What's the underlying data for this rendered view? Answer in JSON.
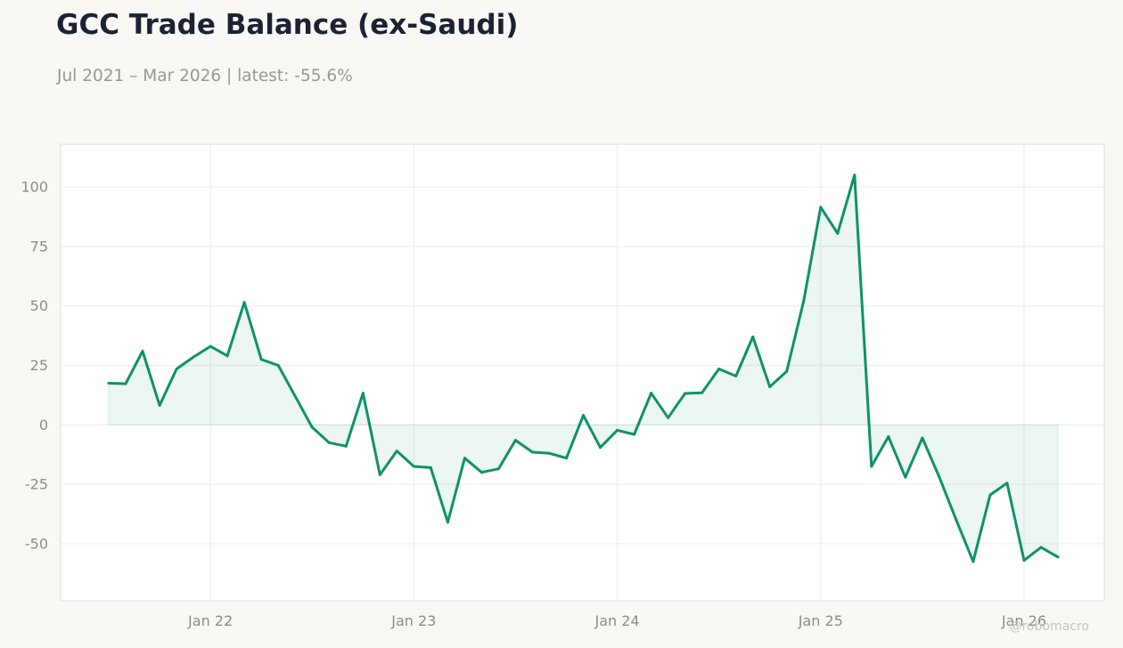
{
  "header": {
    "title": "GCC Trade Balance (ex-Saudi)",
    "subtitle": "Jul 2021 – Mar 2026 | latest: -55.6%"
  },
  "watermark": "@robomacro",
  "colors": {
    "line": "#0f9268",
    "fill": "#0f9268",
    "grid": "#ececec",
    "frame": "#dcdcd8",
    "plot_bg": "#ffffff",
    "page_bg": "#f9f8f5"
  },
  "chart_data": {
    "type": "area",
    "title": "GCC Trade Balance (ex-Saudi)",
    "subtitle": "Jul 2021 – Mar 2026 | latest: -55.6%",
    "xlabel": "",
    "ylabel": "",
    "x_start": "2021-07",
    "x_end": "2026-03",
    "x": [
      "2021-07",
      "2021-08",
      "2021-09",
      "2021-10",
      "2021-11",
      "2021-12",
      "2022-01",
      "2022-02",
      "2022-03",
      "2022-04",
      "2022-05",
      "2022-06",
      "2022-07",
      "2022-08",
      "2022-09",
      "2022-10",
      "2022-11",
      "2022-12",
      "2023-01",
      "2023-02",
      "2023-03",
      "2023-04",
      "2023-05",
      "2023-06",
      "2023-07",
      "2023-08",
      "2023-09",
      "2023-10",
      "2023-11",
      "2023-12",
      "2024-01",
      "2024-02",
      "2024-03",
      "2024-04",
      "2024-05",
      "2024-06",
      "2024-07",
      "2024-08",
      "2024-09",
      "2024-10",
      "2024-11",
      "2024-12",
      "2025-01",
      "2025-02",
      "2025-03",
      "2025-04",
      "2025-05",
      "2025-06",
      "2025-07",
      "2025-08",
      "2025-09",
      "2025-10",
      "2025-11",
      "2025-12",
      "2026-01",
      "2026-02",
      "2026-03"
    ],
    "series": [
      {
        "values": [
          17.5,
          17.3,
          31.0,
          8.2,
          23.5,
          28.5,
          33.0,
          29.0,
          51.5,
          27.5,
          25.0,
          12.0,
          -1.0,
          -7.5,
          -9.0,
          13.3,
          -21.0,
          -11.0,
          -17.5,
          -18.0,
          -41.0,
          -14.0,
          -20.0,
          -18.5,
          -6.5,
          -11.5,
          -12.0,
          -14.0,
          4.0,
          -9.5,
          -2.3,
          -4.0,
          13.3,
          3.0,
          13.2,
          13.5,
          23.5,
          20.5,
          37.0,
          16.0,
          22.5,
          52.0,
          91.5,
          80.5,
          105.0,
          -17.5,
          -5.0,
          -22.0,
          -5.5,
          -22.0,
          -40.0,
          -57.5,
          -29.5,
          -24.5,
          -57.0,
          -51.5,
          -55.6
        ]
      }
    ],
    "ylim": [
      -74,
      118
    ],
    "yticks": [
      -50,
      -25,
      0,
      25,
      50,
      75,
      100
    ],
    "ytick_labels": [
      "-50",
      "-25",
      "0",
      "25",
      "50",
      "75",
      "100"
    ],
    "xticks": [
      "2022-01",
      "2023-01",
      "2024-01",
      "2025-01",
      "2026-01"
    ],
    "xtick_labels": [
      "Jan 22",
      "Jan 23",
      "Jan 24",
      "Jan 25",
      "Jan 26"
    ],
    "grid": true,
    "legend": "none"
  }
}
